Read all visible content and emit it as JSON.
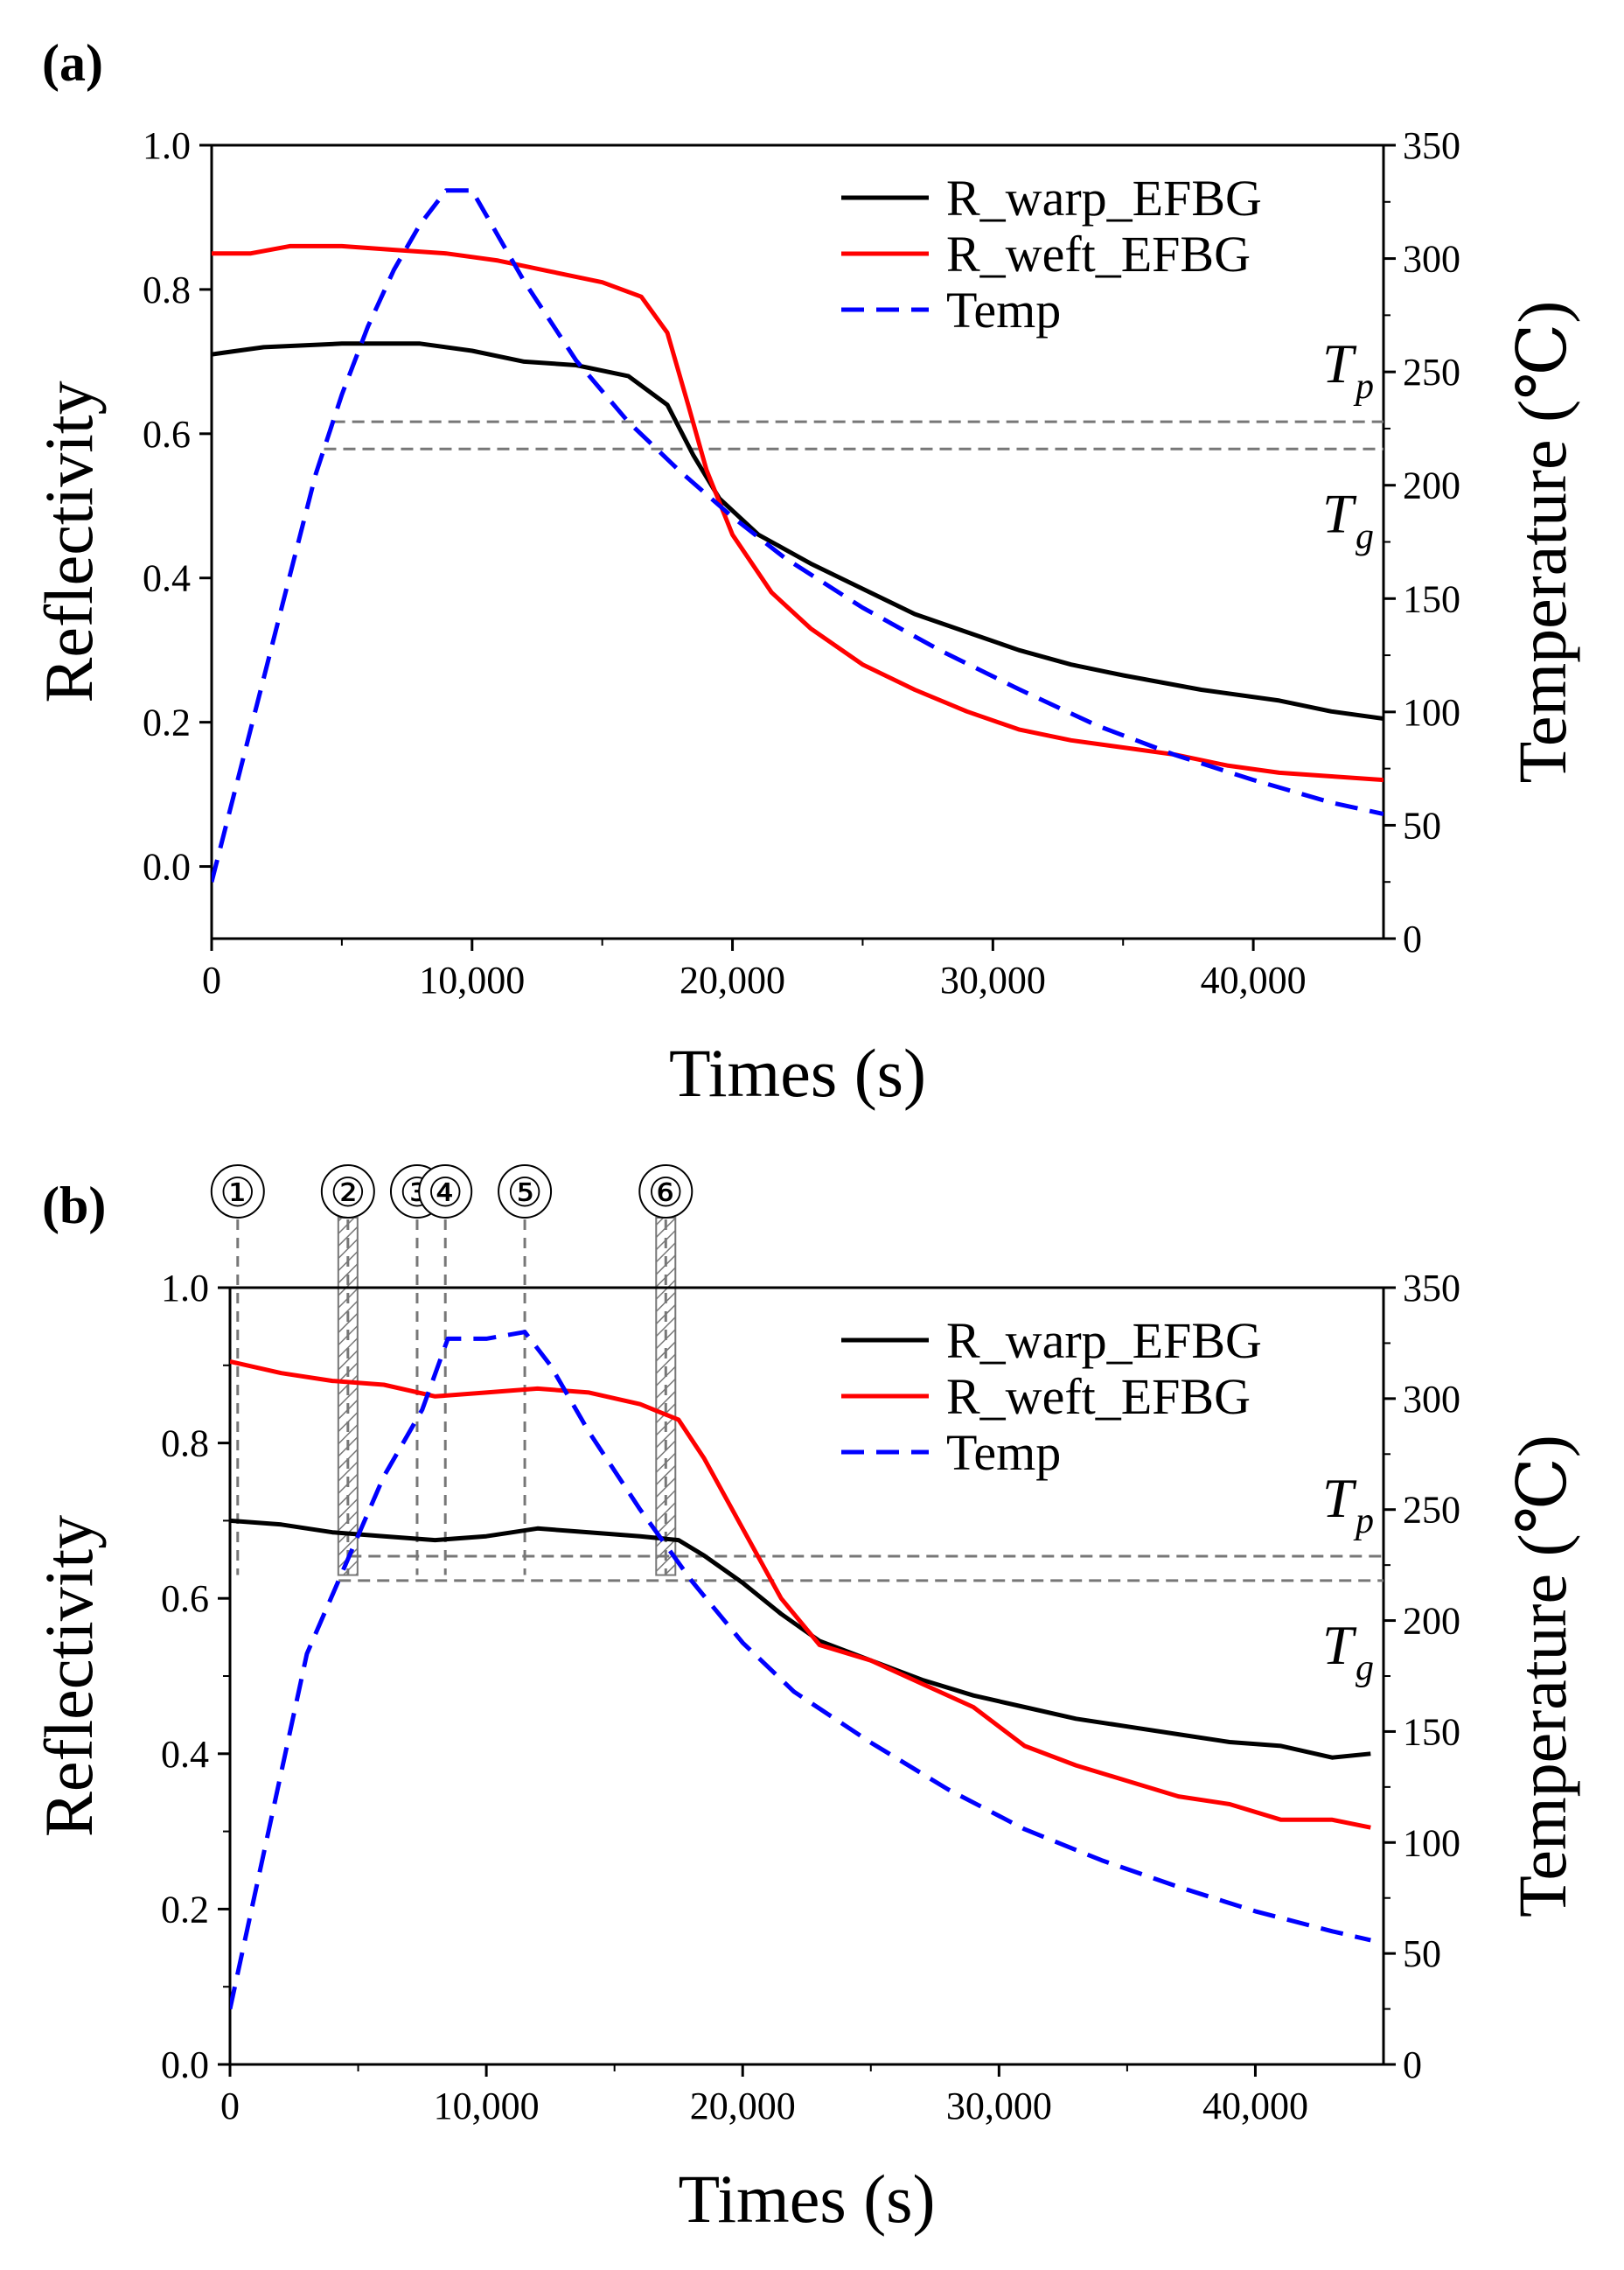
{
  "chart_data": [
    {
      "panel_label": "(a)",
      "type": "line",
      "xlabel": "Times (s)",
      "ylabel": "Reflectivity",
      "y2label": "Temperature (℃)",
      "xlim": [
        0,
        45000
      ],
      "ylim": [
        -0.1,
        1.0
      ],
      "y2lim": [
        0,
        350
      ],
      "xticks": [
        "0",
        "10,000",
        "20,000",
        "30,000",
        "40,000"
      ],
      "xtick_values": [
        0,
        10000,
        20000,
        30000,
        40000
      ],
      "yticks": [
        "0.0",
        "0.2",
        "0.4",
        "0.6",
        "0.8",
        "1.0"
      ],
      "ytick_values": [
        0.0,
        0.2,
        0.4,
        0.6,
        0.8,
        1.0
      ],
      "y2ticks": [
        "0",
        "50",
        "100",
        "150",
        "200",
        "250",
        "300",
        "350"
      ],
      "y2tick_values": [
        0,
        50,
        100,
        150,
        200,
        250,
        300,
        350
      ],
      "legend_position": "top-right",
      "series": [
        {
          "name": "R_warp_EFBG",
          "axis": "left",
          "color": "#000000",
          "style": "solid",
          "x": [
            0,
            2000,
            5000,
            8000,
            10000,
            12000,
            14000,
            16000,
            17500,
            18500,
            19500,
            21000,
            23000,
            25000,
            27000,
            29000,
            31000,
            33000,
            35000,
            38000,
            41000,
            43000,
            45000
          ],
          "y": [
            0.71,
            0.72,
            0.725,
            0.725,
            0.715,
            0.7,
            0.695,
            0.68,
            0.64,
            0.57,
            0.51,
            0.46,
            0.42,
            0.385,
            0.35,
            0.325,
            0.3,
            0.28,
            0.265,
            0.245,
            0.23,
            0.215,
            0.205
          ]
        },
        {
          "name": "R_weft_EFBG",
          "axis": "left",
          "color": "#ff0000",
          "style": "solid",
          "x": [
            0,
            1500,
            3000,
            5000,
            7000,
            9000,
            11000,
            13000,
            15000,
            16500,
            17500,
            18300,
            19000,
            20000,
            21500,
            23000,
            25000,
            27000,
            29000,
            31000,
            33000,
            35000,
            37000,
            39000,
            41000,
            43000,
            45000
          ],
          "y": [
            0.85,
            0.85,
            0.86,
            0.86,
            0.855,
            0.85,
            0.84,
            0.825,
            0.81,
            0.79,
            0.74,
            0.64,
            0.55,
            0.46,
            0.38,
            0.33,
            0.28,
            0.245,
            0.215,
            0.19,
            0.175,
            0.165,
            0.155,
            0.14,
            0.13,
            0.125,
            0.12
          ]
        },
        {
          "name": "Temp",
          "axis": "right",
          "color": "#0000ff",
          "style": "dashed",
          "x": [
            0,
            1000,
            2000,
            3000,
            4000,
            5000,
            6000,
            7000,
            8000,
            9000,
            10000,
            11000,
            12000,
            14000,
            16000,
            18000,
            20000,
            22000,
            25000,
            28000,
            31000,
            34000,
            37000,
            40000,
            43000,
            45000
          ],
          "y": [
            25,
            70,
            115,
            160,
            205,
            240,
            270,
            295,
            315,
            330,
            330,
            310,
            290,
            255,
            228,
            206,
            186,
            168,
            146,
            127,
            110,
            94,
            81,
            70,
            60,
            55
          ]
        }
      ],
      "reference_lines": [
        {
          "label": "T",
          "subscript": "p",
          "y2": 228
        },
        {
          "label": "T",
          "subscript": "g",
          "y2": 216
        }
      ]
    },
    {
      "panel_label": "(b)",
      "type": "line",
      "xlabel": "Times (s)",
      "ylabel": "Reflectivity",
      "y2label": "Temperature (℃)",
      "xlim": [
        0,
        45000
      ],
      "ylim": [
        0.0,
        1.0
      ],
      "y2lim": [
        0,
        350
      ],
      "xticks": [
        "0",
        "10,000",
        "20,000",
        "30,000",
        "40,000"
      ],
      "xtick_values": [
        0,
        10000,
        20000,
        30000,
        40000
      ],
      "yticks": [
        "0.0",
        "0.2",
        "0.4",
        "0.6",
        "0.8",
        "1.0"
      ],
      "ytick_values": [
        0.0,
        0.2,
        0.4,
        0.6,
        0.8,
        1.0
      ],
      "y2ticks": [
        "0",
        "50",
        "100",
        "150",
        "200",
        "250",
        "300",
        "350"
      ],
      "y2tick_values": [
        0,
        50,
        100,
        150,
        200,
        250,
        300,
        350
      ],
      "legend_position": "top-right",
      "series": [
        {
          "name": "R_warp_EFBG",
          "axis": "left",
          "color": "#000000",
          "style": "solid",
          "x": [
            0,
            2000,
            4000,
            6000,
            8000,
            10000,
            12000,
            14000,
            16000,
            17500,
            18500,
            20000,
            21500,
            23000,
            25000,
            27000,
            29000,
            31000,
            33000,
            35000,
            37000,
            39000,
            41000,
            43000,
            44500
          ],
          "y": [
            0.7,
            0.695,
            0.685,
            0.68,
            0.675,
            0.68,
            0.69,
            0.685,
            0.68,
            0.675,
            0.655,
            0.62,
            0.58,
            0.545,
            0.52,
            0.495,
            0.475,
            0.46,
            0.445,
            0.435,
            0.425,
            0.415,
            0.41,
            0.395,
            0.4
          ]
        },
        {
          "name": "R_weft_EFBG",
          "axis": "left",
          "color": "#ff0000",
          "style": "solid",
          "x": [
            0,
            2000,
            4000,
            6000,
            8000,
            10000,
            12000,
            14000,
            16000,
            17500,
            18500,
            20000,
            21500,
            23000,
            25000,
            27000,
            29000,
            31000,
            33000,
            35000,
            37000,
            39000,
            41000,
            43000,
            44500
          ],
          "y": [
            0.905,
            0.89,
            0.88,
            0.875,
            0.86,
            0.865,
            0.87,
            0.865,
            0.85,
            0.83,
            0.78,
            0.69,
            0.6,
            0.54,
            0.52,
            0.49,
            0.46,
            0.41,
            0.385,
            0.365,
            0.345,
            0.335,
            0.315,
            0.315,
            0.305
          ]
        },
        {
          "name": "Temp",
          "axis": "right",
          "color": "#0000ff",
          "style": "dashed",
          "x": [
            0,
            1500,
            3000,
            4500,
            6000,
            7500,
            8500,
            10000,
            11500,
            12500,
            14000,
            16000,
            18000,
            20000,
            22000,
            25000,
            28000,
            31000,
            34000,
            37000,
            40000,
            43000,
            44500
          ],
          "y": [
            25,
            105,
            185,
            225,
            265,
            295,
            327,
            327,
            330,
            315,
            285,
            250,
            218,
            190,
            168,
            145,
            124,
            106,
            92,
            80,
            69,
            60,
            56
          ]
        }
      ],
      "reference_lines": [
        {
          "label": "T",
          "subscript": "p",
          "y2": 229
        },
        {
          "label": "T",
          "subscript": "g",
          "y2": 218
        }
      ],
      "stage_markers": [
        {
          "label": "①",
          "x": 300,
          "hatched": false
        },
        {
          "label": "②",
          "x": 4600,
          "hatched": true
        },
        {
          "label": "③",
          "x": 7300,
          "hatched": false
        },
        {
          "label": "④",
          "x": 8400,
          "hatched": false
        },
        {
          "label": "⑤",
          "x": 11500,
          "hatched": false
        },
        {
          "label": "⑥",
          "x": 17000,
          "hatched": true
        }
      ]
    }
  ]
}
